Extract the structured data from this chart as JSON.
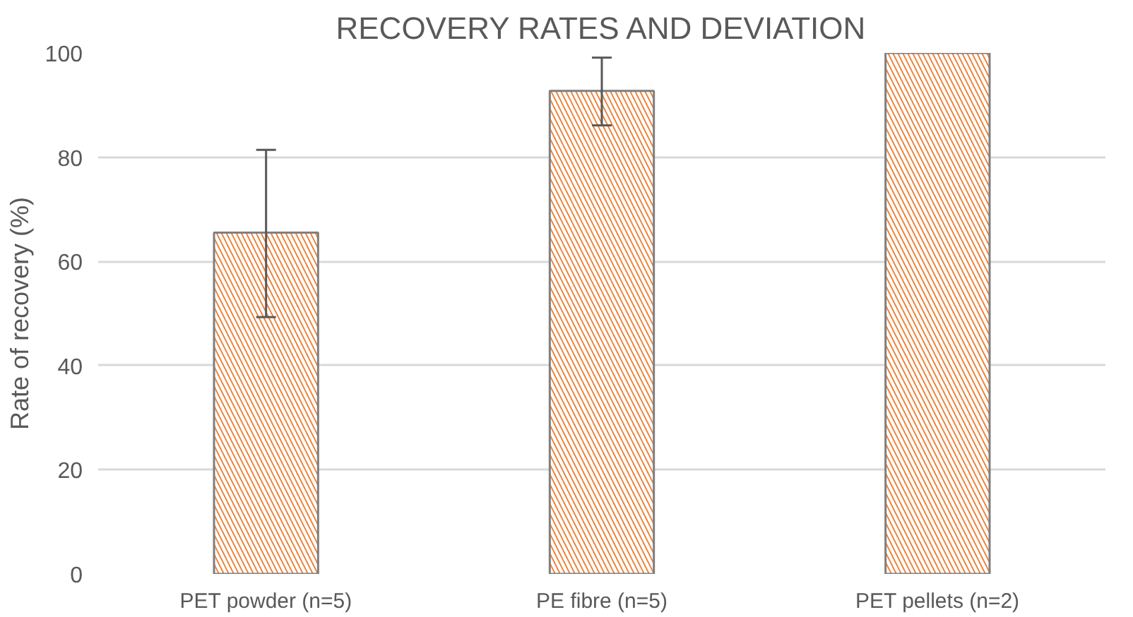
{
  "chart_data": {
    "type": "bar",
    "title": "RECOVERY RATES AND DEVIATION",
    "ylabel": "Rate of recovery (%)",
    "categories": [
      "PET powder (n=5)",
      "PE fibre (n=5)",
      "PET pellets (n=2)"
    ],
    "values": [
      65.5,
      92.7,
      100
    ],
    "color": "#ed7d31",
    "errors": [
      [
        49.3,
        81.4
      ],
      [
        86.1,
        99.1
      ],
      null
    ],
    "ylim": [
      0,
      100
    ],
    "yticks": [
      0,
      20,
      40,
      60,
      80,
      100
    ],
    "grid": "y"
  }
}
